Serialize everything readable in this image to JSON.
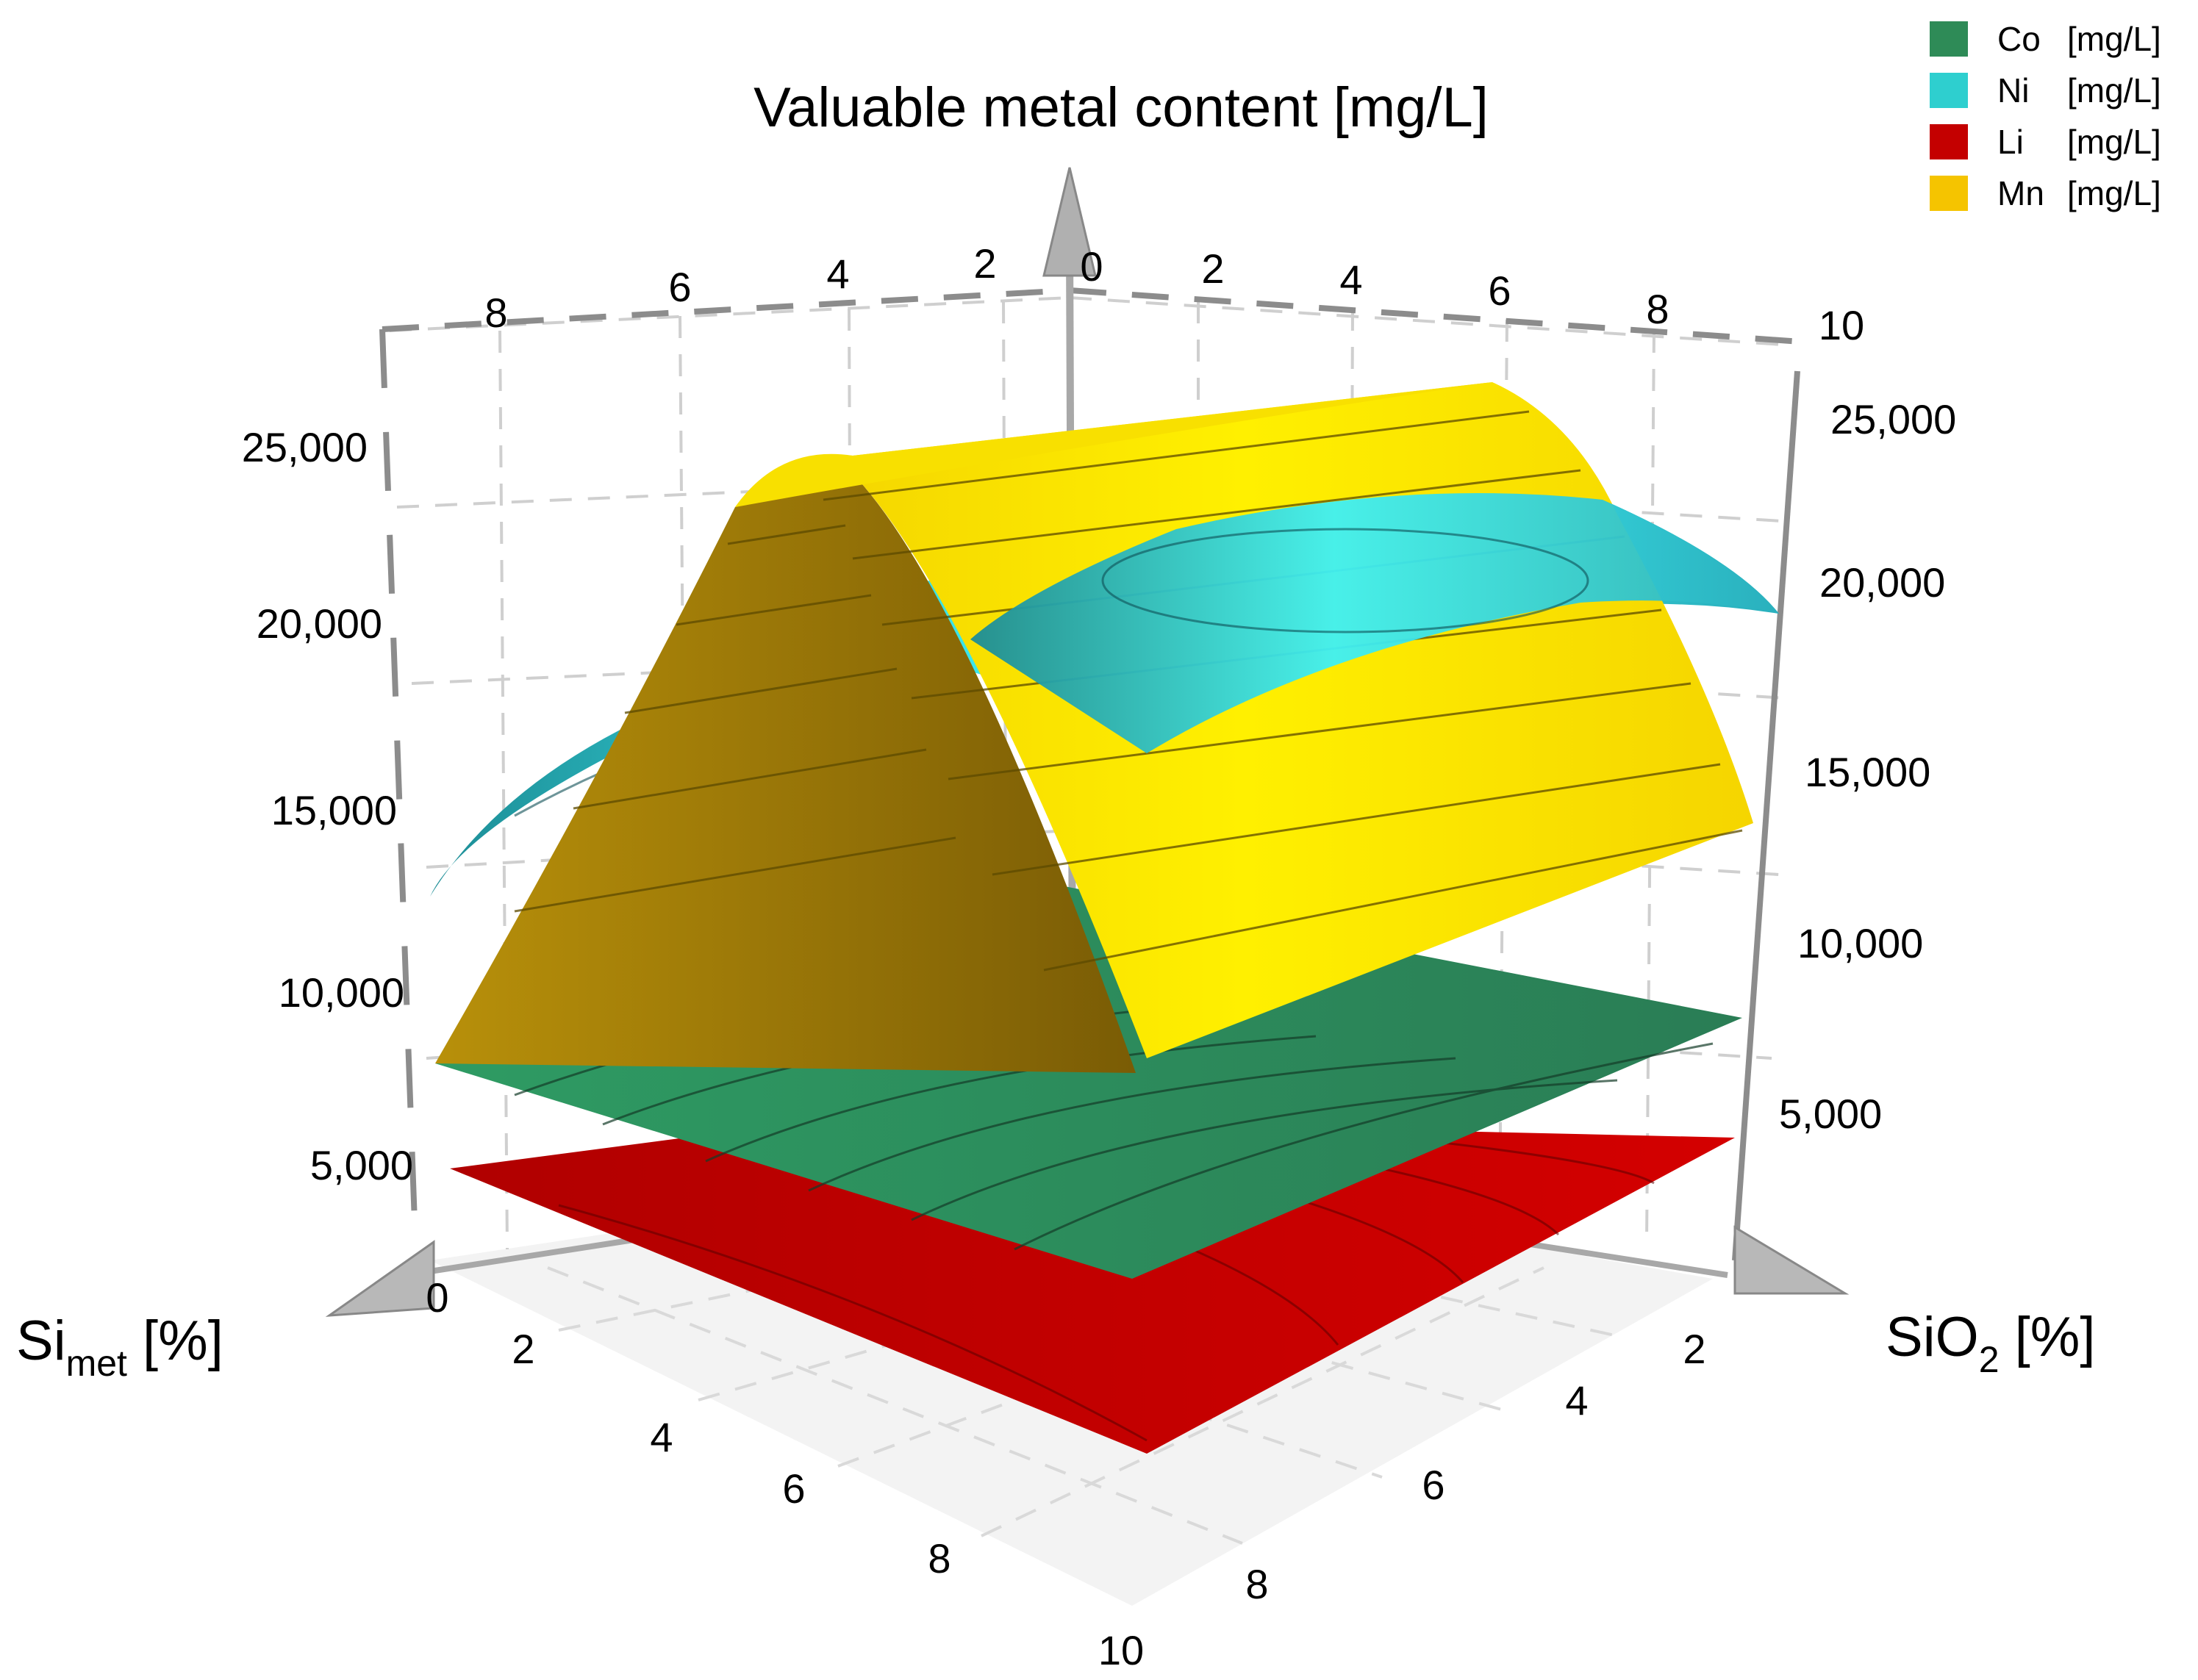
{
  "chart_data": {
    "type": "surface3d",
    "title": "Valuable metal content [mg/L]",
    "x_axis": {
      "label_main": "Si",
      "label_sub": "met",
      "label_unit": " [%]",
      "range": [
        0,
        10
      ],
      "ticks": [
        "0",
        "2",
        "4",
        "6",
        "8",
        "10"
      ]
    },
    "y_axis": {
      "label_main": "SiO",
      "label_sub": "2",
      "label_unit": " [%]",
      "range": [
        0,
        10
      ],
      "ticks": [
        "2",
        "4",
        "6",
        "8"
      ]
    },
    "z_axis": {
      "range": [
        0,
        27000
      ],
      "ticks": [
        "5,000",
        "10,000",
        "15,000",
        "20,000",
        "25,000"
      ]
    },
    "back_x_ticks": [
      "8",
      "6",
      "4",
      "2",
      "0"
    ],
    "back_y_ticks": [
      "2",
      "4",
      "6",
      "8",
      "10"
    ],
    "series": [
      {
        "name": "Co",
        "unit": "[mg/L]",
        "color": "#2e8b57",
        "corners": {
          "si0_sio0": 8000,
          "si10_sio0": 4000,
          "si0_sio10": 7500,
          "si10_sio10": 8600
        }
      },
      {
        "name": "Ni",
        "unit": "[mg/L]",
        "color": "#2ecfcf",
        "corners": {
          "si0_sio0": 13000,
          "si10_sio0": 17800,
          "si0_sio10": 21500,
          "si10_sio10": 18500
        }
      },
      {
        "name": "Li",
        "unit": "[mg/L]",
        "color": "#c40000",
        "corners": {
          "si0_sio0": 3800,
          "si10_sio0": 2000,
          "si0_sio10": 3400,
          "si10_sio10": 4300
        }
      },
      {
        "name": "Mn",
        "unit": "[mg/L]",
        "color": "#f5c400",
        "corners": {
          "si0_sio0": 8000,
          "si10_sio0": 7200,
          "si0_sio10": 15500,
          "si10_sio10": 14200,
          "ridge_max": 25000,
          "ridge_at_sio2": 3
        }
      }
    ],
    "legend_position": "top-right"
  }
}
